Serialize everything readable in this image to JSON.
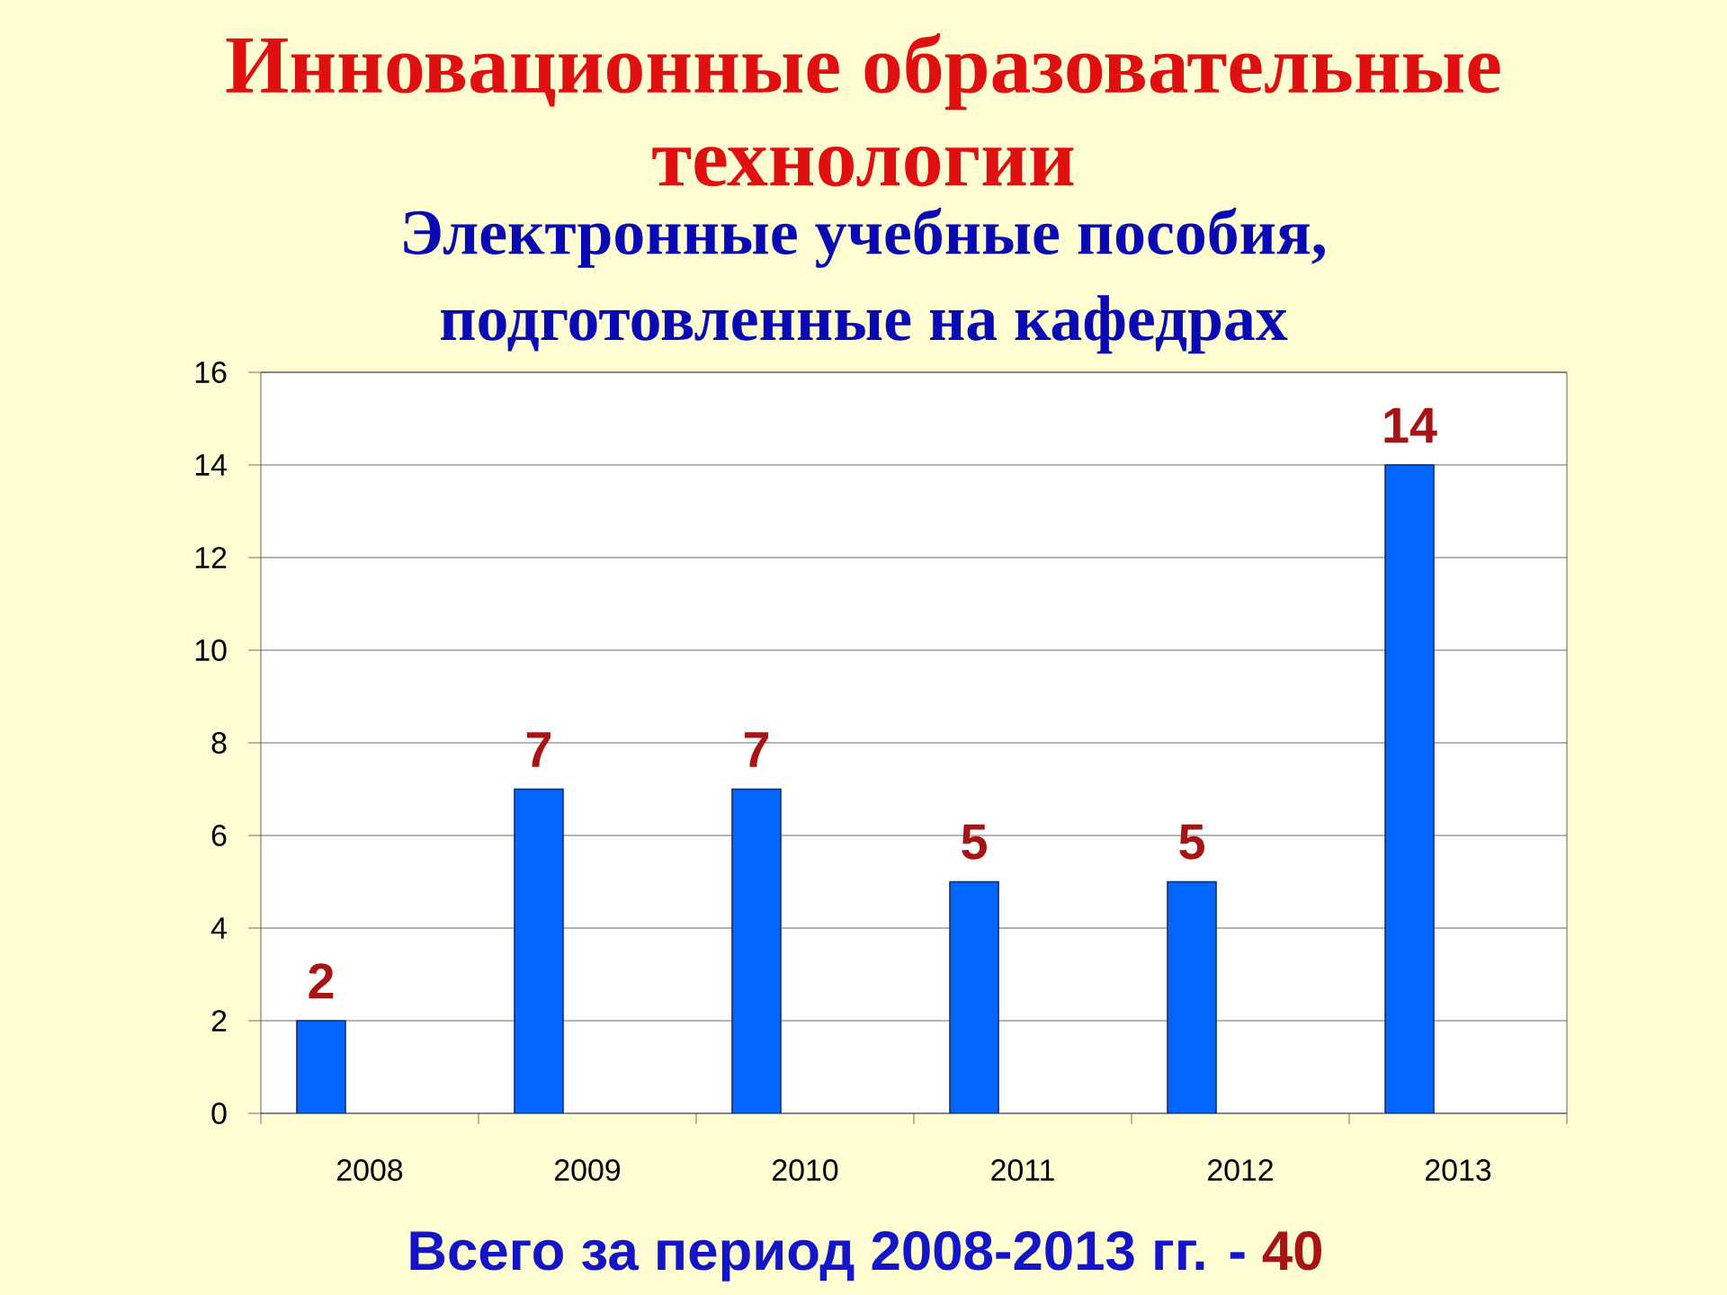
{
  "chart_data": {
    "type": "bar",
    "title": "Инновационные образовательные технологии",
    "subtitle": "Электронные учебные пособия, подготовленные на кафедрах",
    "categories": [
      "2008",
      "2009",
      "2010",
      "2011",
      "2012",
      "2013"
    ],
    "values": [
      2,
      7,
      7,
      5,
      5,
      14
    ],
    "color": "#0066ff",
    "ylim": [
      0,
      16
    ],
    "yticks": [
      0,
      2,
      4,
      6,
      8,
      10,
      12,
      14,
      16
    ],
    "grid": "y",
    "data_labels": true,
    "annotations": [
      "Всего за период 2008-2013 гг. -",
      "40"
    ]
  }
}
